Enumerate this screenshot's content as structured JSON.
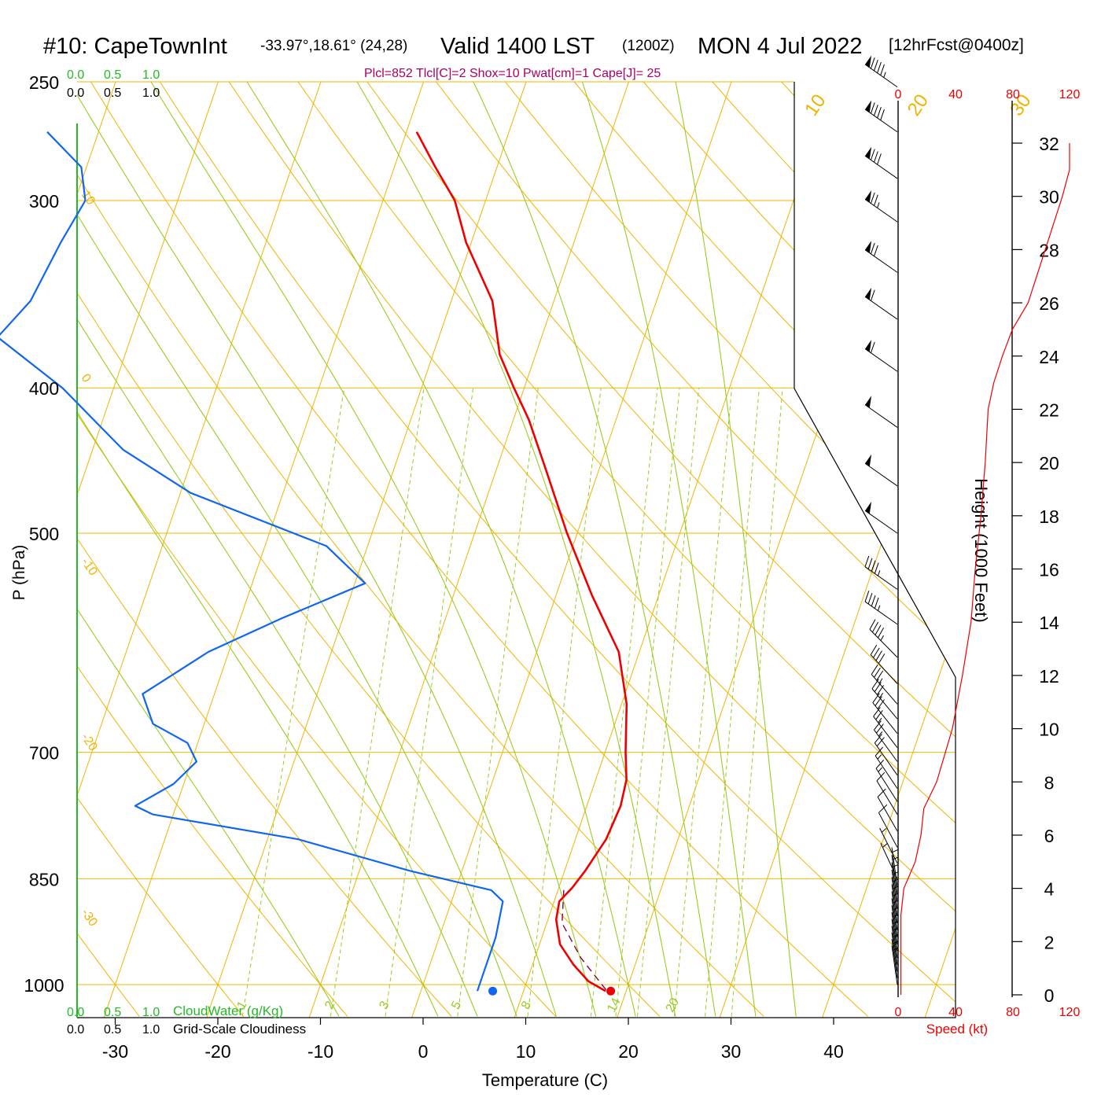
{
  "header": {
    "station": "#10: CapeTownInt",
    "location": "-33.97°,18.61° (24,28)",
    "valid": "Valid 1400 LST",
    "utc": "(1200Z)",
    "date": "MON 4 Jul 2022",
    "forecast": "[12hrFcst@0400z]",
    "indices": "Plcl=852 Tlcl[C]=2 Shox=10 Pwat[cm]=1 Cape[J]= 25"
  },
  "labels": {
    "pressure_axis": "P (hPa)",
    "temperature_axis": "Temperature (C)",
    "height_axis": "Height (1000 Feet)",
    "speed_axis": "Speed (kt)",
    "cloudwater_legend": "CloudWater (g/Kg)",
    "cloudiness_legend": "Grid-Scale Cloudiness"
  },
  "scales": {
    "cloud_ticks": [
      "0.0",
      "0.5",
      "1.0"
    ],
    "speed_ticks": [
      "0",
      "40",
      "80",
      "120"
    ]
  },
  "colors": {
    "temperature": "#ee0000",
    "dewpoint": "#1166ee",
    "parcel": "#880044",
    "isotherm": "#f0b400",
    "dry_adiabat": "#f0b400",
    "moist_adiabat": "#99cc22",
    "mixing_ratio": "#99cc22",
    "cloudwater": "#22bb22",
    "indices": "#aa0066",
    "speed": "#ee0000"
  },
  "chart_data": {
    "type": "skew-t sounding",
    "pressure_ticks": [
      250,
      300,
      400,
      500,
      700,
      850,
      1000
    ],
    "temperature_ticks": [
      -30,
      -20,
      -10,
      0,
      10,
      20,
      30,
      40
    ],
    "height_ticks": [
      0,
      2,
      4,
      6,
      8,
      10,
      12,
      14,
      16,
      18,
      20,
      22,
      24,
      26,
      28,
      30,
      32
    ],
    "isotherm_labels": [
      -30,
      -20,
      -10,
      0,
      10,
      20,
      30
    ],
    "theta_labels": [
      10,
      0,
      -10,
      -20,
      -30
    ],
    "theta_left_labels": [
      10,
      0,
      -10,
      -20,
      -30
    ],
    "mixing_ratio_labels": [
      1,
      2,
      3,
      5,
      8,
      14,
      20
    ],
    "temperature_profile": [
      {
        "p": 1010,
        "t": 18.0
      },
      {
        "p": 995,
        "t": 16.0
      },
      {
        "p": 970,
        "t": 14.0
      },
      {
        "p": 940,
        "t": 12.0
      },
      {
        "p": 905,
        "t": 10.8
      },
      {
        "p": 880,
        "t": 10.5
      },
      {
        "p": 862,
        "t": 11.3
      },
      {
        "p": 840,
        "t": 12.0
      },
      {
        "p": 800,
        "t": 13.0
      },
      {
        "p": 760,
        "t": 13.3
      },
      {
        "p": 730,
        "t": 13.0
      },
      {
        "p": 700,
        "t": 12.0
      },
      {
        "p": 650,
        "t": 10.5
      },
      {
        "p": 600,
        "t": 8.0
      },
      {
        "p": 550,
        "t": 3.5
      },
      {
        "p": 500,
        "t": -1.0
      },
      {
        "p": 450,
        "t": -5.5
      },
      {
        "p": 420,
        "t": -8.5
      },
      {
        "p": 400,
        "t": -11.0
      },
      {
        "p": 380,
        "t": -13.5
      },
      {
        "p": 350,
        "t": -16.0
      },
      {
        "p": 320,
        "t": -20.5
      },
      {
        "p": 300,
        "t": -23.0
      },
      {
        "p": 285,
        "t": -26.0
      },
      {
        "p": 270,
        "t": -29.0
      }
    ],
    "dewpoint_profile": [
      {
        "p": 1010,
        "t": 5.5
      },
      {
        "p": 990,
        "t": 5.5
      },
      {
        "p": 930,
        "t": 5.5
      },
      {
        "p": 880,
        "t": 5.0
      },
      {
        "p": 865,
        "t": 3.5
      },
      {
        "p": 840,
        "t": -5.0
      },
      {
        "p": 800,
        "t": -17.0
      },
      {
        "p": 770,
        "t": -32.0
      },
      {
        "p": 760,
        "t": -34.0
      },
      {
        "p": 735,
        "t": -31.0
      },
      {
        "p": 710,
        "t": -29.5
      },
      {
        "p": 690,
        "t": -31.0
      },
      {
        "p": 670,
        "t": -35.0
      },
      {
        "p": 640,
        "t": -37.0
      },
      {
        "p": 600,
        "t": -32.0
      },
      {
        "p": 570,
        "t": -26.0
      },
      {
        "p": 540,
        "t": -19.0
      },
      {
        "p": 510,
        "t": -24.0
      },
      {
        "p": 470,
        "t": -39.0
      },
      {
        "p": 440,
        "t": -47.0
      },
      {
        "p": 400,
        "t": -55.0
      },
      {
        "p": 370,
        "t": -63.0
      },
      {
        "p": 350,
        "t": -61.0
      },
      {
        "p": 320,
        "t": -60.0
      },
      {
        "p": 300,
        "t": -59.0
      },
      {
        "p": 285,
        "t": -60.5
      },
      {
        "p": 270,
        "t": -65.0
      }
    ],
    "parcel_profile": [
      {
        "p": 1008,
        "t": 18.0
      },
      {
        "p": 960,
        "t": 14.5
      },
      {
        "p": 910,
        "t": 11.5
      },
      {
        "p": 862,
        "t": 10.5
      }
    ],
    "surface_temperature": 18.5,
    "surface_dewpoint": 7.0,
    "speed_profile": [
      {
        "h": 0,
        "s": 2
      },
      {
        "h": 1,
        "s": 2
      },
      {
        "h": 2,
        "s": 2
      },
      {
        "h": 3,
        "s": 2
      },
      {
        "h": 4,
        "s": 4
      },
      {
        "h": 5,
        "s": 12
      },
      {
        "h": 6,
        "s": 16
      },
      {
        "h": 7,
        "s": 18
      },
      {
        "h": 8,
        "s": 27
      },
      {
        "h": 10,
        "s": 38
      },
      {
        "h": 12,
        "s": 45
      },
      {
        "h": 14,
        "s": 51
      },
      {
        "h": 16,
        "s": 54
      },
      {
        "h": 18,
        "s": 58
      },
      {
        "h": 20,
        "s": 61
      },
      {
        "h": 22,
        "s": 63
      },
      {
        "h": 23,
        "s": 67
      },
      {
        "h": 24,
        "s": 73
      },
      {
        "h": 25,
        "s": 80
      },
      {
        "h": 26,
        "s": 91
      },
      {
        "h": 28,
        "s": 103
      },
      {
        "h": 30,
        "s": 115
      },
      {
        "h": 31,
        "s": 120
      },
      {
        "h": 32,
        "s": 120
      }
    ],
    "wind_barbs": [
      {
        "p": 1000,
        "speed": 5
      },
      {
        "p": 990,
        "speed": 5
      },
      {
        "p": 980,
        "speed": 5
      },
      {
        "p": 970,
        "speed": 5
      },
      {
        "p": 960,
        "speed": 5
      },
      {
        "p": 950,
        "speed": 5
      },
      {
        "p": 940,
        "speed": 5
      },
      {
        "p": 930,
        "speed": 5
      },
      {
        "p": 920,
        "speed": 5
      },
      {
        "p": 910,
        "speed": 5
      },
      {
        "p": 900,
        "speed": 5
      },
      {
        "p": 890,
        "speed": 5
      },
      {
        "p": 880,
        "speed": 5
      },
      {
        "p": 870,
        "speed": 5
      },
      {
        "p": 860,
        "speed": 5
      },
      {
        "p": 850,
        "speed": 5
      },
      {
        "p": 830,
        "speed": 5
      },
      {
        "p": 810,
        "speed": 10
      },
      {
        "p": 790,
        "speed": 10
      },
      {
        "p": 770,
        "speed": 10
      },
      {
        "p": 755,
        "speed": 15
      },
      {
        "p": 740,
        "speed": 15
      },
      {
        "p": 725,
        "speed": 20
      },
      {
        "p": 710,
        "speed": 25
      },
      {
        "p": 695,
        "speed": 25
      },
      {
        "p": 680,
        "speed": 30
      },
      {
        "p": 665,
        "speed": 35
      },
      {
        "p": 650,
        "speed": 35
      },
      {
        "p": 630,
        "speed": 40
      },
      {
        "p": 605,
        "speed": 45
      },
      {
        "p": 575,
        "speed": 45
      },
      {
        "p": 545,
        "speed": 45
      },
      {
        "p": 500,
        "speed": 50
      },
      {
        "p": 465,
        "speed": 50
      },
      {
        "p": 425,
        "speed": 50
      },
      {
        "p": 390,
        "speed": 60
      },
      {
        "p": 360,
        "speed": 60
      },
      {
        "p": 335,
        "speed": 70
      },
      {
        "p": 310,
        "speed": 75
      },
      {
        "p": 290,
        "speed": 80
      },
      {
        "p": 270,
        "speed": 90
      },
      {
        "p": 252,
        "speed": 95
      }
    ]
  }
}
